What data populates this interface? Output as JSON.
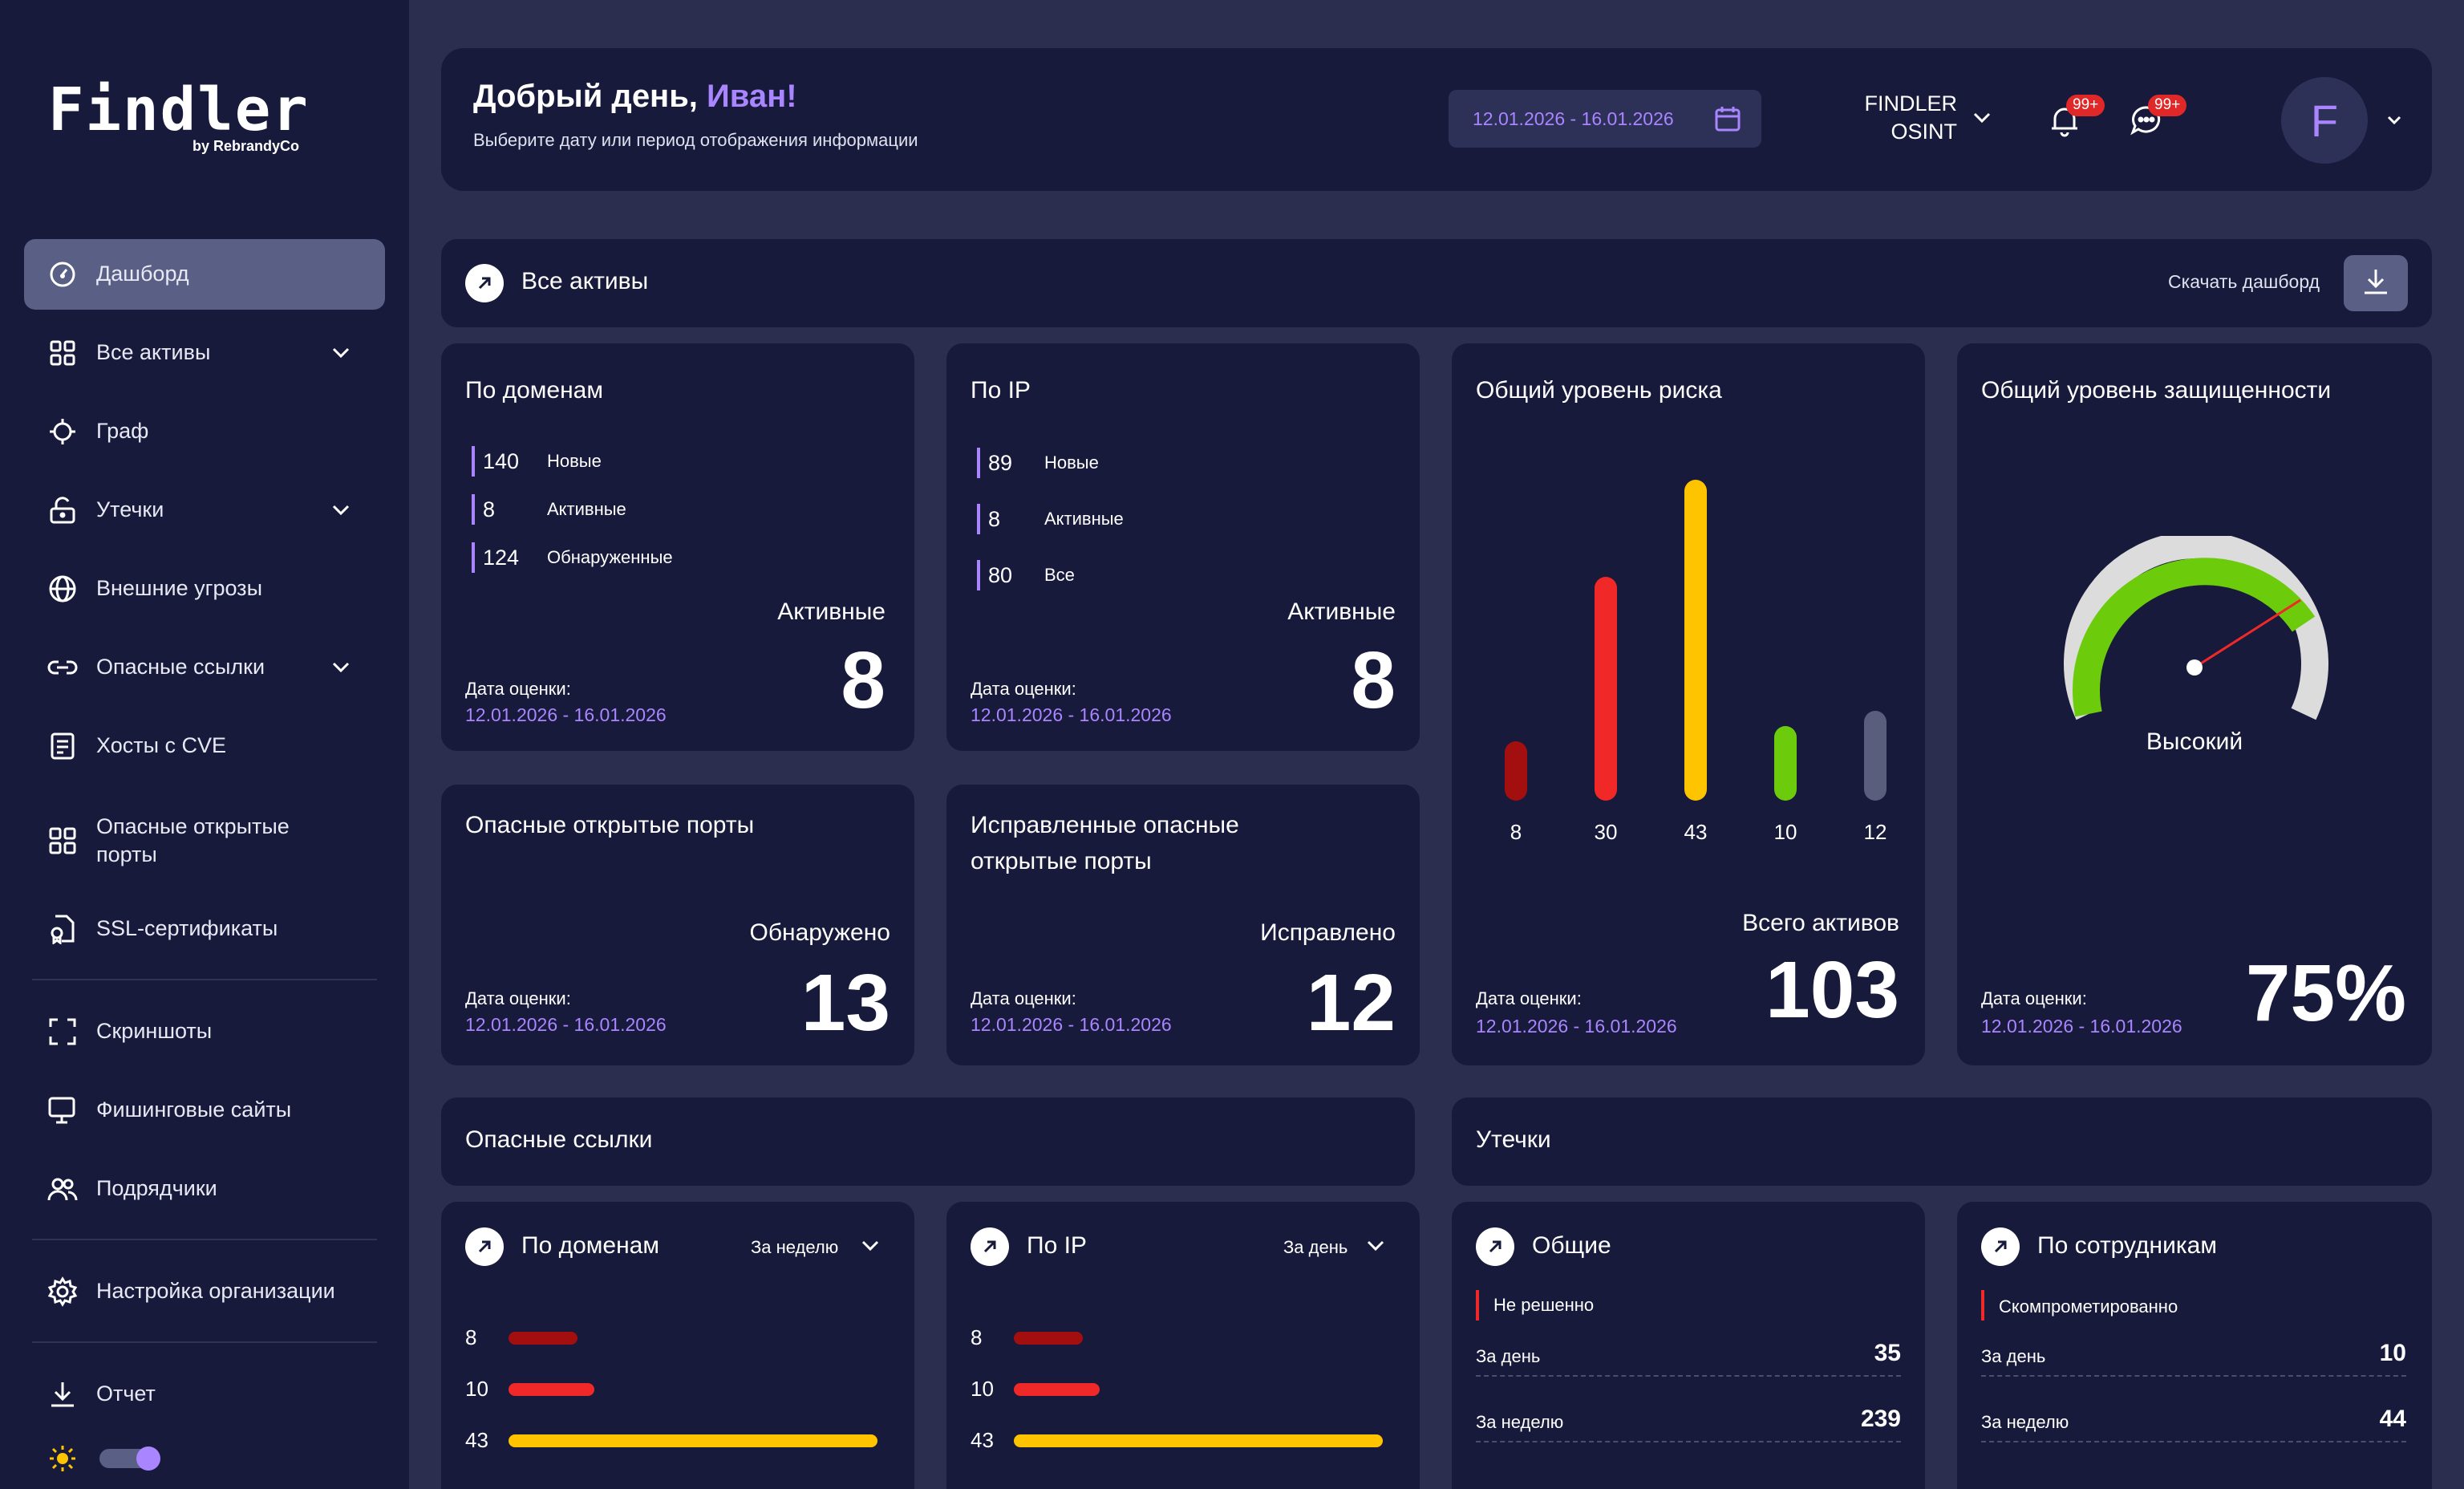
{
  "app": {
    "logo": "Findler",
    "logo_sub": "by RebrandyCo"
  },
  "sidebar": {
    "items": [
      {
        "label": "Дашборд",
        "icon": "dashboard-icon",
        "active": true
      },
      {
        "label": "Все активы",
        "icon": "grid-icon",
        "has_chevron": true
      },
      {
        "label": "Граф",
        "icon": "graph-icon"
      },
      {
        "label": "Утечки",
        "icon": "unlock-icon",
        "has_chevron": true
      },
      {
        "label": "Внешние угрозы",
        "icon": "globe-icon"
      },
      {
        "label": "Опасные ссылки",
        "icon": "link-icon",
        "has_chevron": true
      },
      {
        "label": "Хосты с CVE",
        "icon": "document-icon"
      },
      {
        "label": "Опасные открытые порты",
        "icon": "ports-icon"
      },
      {
        "label": "SSL-сертификаты",
        "icon": "certificate-icon"
      },
      {
        "label": "Скриншоты",
        "icon": "screenshot-icon"
      },
      {
        "label": "Фишинговые сайты",
        "icon": "monitor-icon"
      },
      {
        "label": "Подрядчики",
        "icon": "users-icon"
      },
      {
        "label": "Настройка организации",
        "icon": "gear-icon"
      },
      {
        "label": "Отчет",
        "icon": "download-icon"
      }
    ],
    "theme_toggle": {
      "icon": "sun-icon",
      "enabled": true
    }
  },
  "header": {
    "greeting": "Добрый день,",
    "user_name": "Иван!",
    "subtitle": "Выберите дату или период отображения информации",
    "date_range": "12.01.2026 - 16.01.2026",
    "org_line1": "FINDLER",
    "org_line2": "OSINT",
    "notif_badge": "99+",
    "chat_badge": "99+",
    "avatar_letter": "F"
  },
  "assets_section": {
    "title": "Все активы",
    "download_label": "Скачать дашборд"
  },
  "cards": {
    "domains": {
      "title": "По доменам",
      "stats": [
        {
          "num": "140",
          "label": "Новые"
        },
        {
          "num": "8",
          "label": "Активные"
        },
        {
          "num": "124",
          "label": "Обнаруженные"
        }
      ],
      "big_label": "Активные",
      "big_value": "8",
      "date_label": "Дата оценки:",
      "date": "12.01.2026 - 16.01.2026"
    },
    "ip": {
      "title": "По IP",
      "stats": [
        {
          "num": "89",
          "label": "Новые"
        },
        {
          "num": "8",
          "label": "Активные"
        },
        {
          "num": "80",
          "label": "Все"
        }
      ],
      "big_label": "Активные",
      "big_value": "8",
      "date_label": "Дата оценки:",
      "date": "12.01.2026 - 16.01.2026"
    },
    "ports": {
      "title": "Опасные открытые порты",
      "big_label": "Обнаружено",
      "big_value": "13",
      "date_label": "Дата оценки:",
      "date": "12.01.2026 - 16.01.2026"
    },
    "fixed_ports": {
      "title": "Исправленные опасные открытые порты",
      "big_label": "Исправлено",
      "big_value": "12",
      "date_label": "Дата оценки:",
      "date": "12.01.2026 - 16.01.2026"
    },
    "risk": {
      "title": "Общий уровень риска",
      "big_label": "Всего активов",
      "big_value": "103",
      "date_label": "Дата оценки:",
      "date": "12.01.2026 - 16.01.2026"
    },
    "security": {
      "title": "Общий уровень защищенности",
      "gauge_label": "Высокий",
      "big_value": "75%",
      "gauge_fraction": 0.75,
      "date_label": "Дата оценки:",
      "date": "12.01.2026 - 16.01.2026"
    }
  },
  "chart_data": [
    {
      "type": "bar",
      "categories": [
        "8",
        "30",
        "43",
        "10",
        "12"
      ],
      "values": [
        8,
        30,
        43,
        10,
        12
      ],
      "colors": [
        "#a30f0f",
        "#f02828",
        "#ffc400",
        "#6ccc0c",
        "#5a5e7d"
      ]
    },
    {
      "type": "bar",
      "orientation": "horizontal",
      "categories": [
        "8",
        "10",
        "43"
      ],
      "values": [
        8,
        10,
        43
      ],
      "colors": [
        "#a30f0f",
        "#f02828",
        "#ffc400"
      ]
    },
    {
      "type": "bar",
      "orientation": "horizontal",
      "categories": [
        "8",
        "10",
        "43"
      ],
      "values": [
        8,
        10,
        43
      ],
      "colors": [
        "#a30f0f",
        "#f02828",
        "#ffc400"
      ]
    }
  ],
  "links_section": {
    "title": "Опасные ссылки",
    "domains": {
      "title": "По доменам",
      "period": "За неделю"
    },
    "ip": {
      "title": "По IP",
      "period": "За день"
    }
  },
  "leaks_section": {
    "title": "Утечки",
    "general": {
      "title": "Общие",
      "status": "Не решенно",
      "rows": [
        {
          "label": "За день",
          "value": "35"
        },
        {
          "label": "За неделю",
          "value": "239"
        }
      ]
    },
    "employees": {
      "title": "По сотрудникам",
      "status": "Скомпрометированно",
      "rows": [
        {
          "label": "За день",
          "value": "10"
        },
        {
          "label": "За неделю",
          "value": "44"
        }
      ]
    }
  },
  "colors": {
    "accent": "#a985ff",
    "bg": "#2b2e4f",
    "panel": "#171a3b",
    "red": "#f02828",
    "yellow": "#ffc400",
    "green": "#6ccc0c"
  }
}
